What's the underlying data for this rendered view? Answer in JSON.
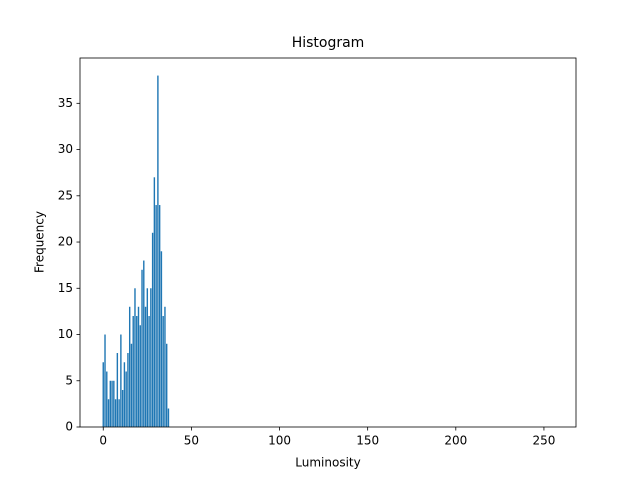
{
  "chart_data": {
    "type": "bar",
    "title": "Histogram",
    "xlabel": "Luminosity",
    "ylabel": "Frequency",
    "color": "#1f77b4",
    "x": [
      0,
      1,
      2,
      3,
      4,
      5,
      6,
      7,
      8,
      9,
      10,
      11,
      12,
      13,
      14,
      15,
      16,
      17,
      18,
      19,
      20,
      21,
      22,
      23,
      24,
      25,
      26,
      27,
      28,
      29,
      30,
      31,
      32,
      33,
      34,
      35,
      36,
      37,
      38,
      39,
      40,
      41,
      42,
      43,
      44,
      45,
      46,
      47,
      48,
      49,
      50,
      51,
      52,
      53,
      54,
      55,
      56,
      57,
      58,
      59,
      60,
      61,
      62,
      63,
      64,
      65,
      66,
      67,
      68,
      69,
      70,
      71,
      72,
      73,
      74,
      75,
      76,
      77,
      78,
      79,
      80,
      81,
      82,
      83,
      84,
      85,
      86,
      87,
      88,
      89,
      90,
      91,
      92,
      93,
      94,
      95,
      96,
      97,
      98,
      99,
      100,
      101,
      102,
      103,
      104,
      105,
      106,
      107,
      108,
      109,
      110,
      111,
      112,
      113,
      114,
      115,
      116,
      117,
      118,
      119,
      120,
      121,
      122,
      123,
      124,
      125,
      126,
      127,
      128,
      129,
      130,
      131,
      132,
      133,
      134,
      135,
      136,
      137,
      138,
      139,
      140,
      141,
      142,
      143,
      144,
      145,
      146,
      147,
      148,
      149,
      150,
      151,
      152,
      153,
      154,
      155,
      156,
      157,
      158,
      159,
      160,
      161,
      162,
      163,
      164,
      165,
      166,
      167,
      168,
      169,
      170,
      171,
      172,
      173,
      174,
      175,
      176,
      177,
      178,
      179,
      180,
      181,
      182,
      183,
      184,
      185,
      186,
      187,
      188,
      189,
      190,
      191,
      192,
      193,
      194,
      195,
      196,
      197,
      198,
      199,
      200,
      201,
      202,
      203,
      204,
      205,
      206,
      207,
      208,
      209,
      210,
      211,
      212,
      213,
      214,
      215,
      216,
      217,
      218,
      219,
      220,
      221,
      222,
      223,
      224,
      225,
      226,
      227,
      228,
      229,
      230,
      231,
      232,
      233,
      234,
      235,
      236,
      237,
      238,
      239,
      240,
      241,
      242,
      243,
      244,
      245,
      246,
      247,
      248,
      249,
      250,
      251,
      252,
      253,
      254,
      255
    ],
    "values": [
      7,
      10,
      6,
      3,
      5,
      5,
      5,
      3,
      8,
      3,
      10,
      4,
      7,
      6,
      8,
      13,
      9,
      12,
      15,
      12,
      13,
      11,
      17,
      18,
      13,
      15,
      12,
      15,
      21,
      27,
      24,
      38,
      24,
      19,
      12,
      13,
      9,
      2,
      0,
      0,
      0,
      0,
      0,
      0,
      0,
      0,
      0,
      0,
      0,
      0,
      0,
      0,
      0,
      0,
      0,
      0,
      0,
      0,
      0,
      0,
      0,
      0,
      0,
      0,
      0,
      0,
      0,
      0,
      0,
      0,
      0,
      0,
      0,
      0,
      0,
      0,
      0,
      0,
      0,
      0,
      0,
      0,
      0,
      0,
      0,
      0,
      0,
      0,
      0,
      0,
      0,
      0,
      0,
      0,
      0,
      0,
      0,
      0,
      0,
      0,
      0,
      0,
      0,
      0,
      0,
      0,
      0,
      0,
      0,
      0,
      0,
      0,
      0,
      0,
      0,
      0,
      0,
      0,
      0,
      0,
      0,
      0,
      0,
      0,
      0,
      0,
      0,
      0,
      0,
      0,
      0,
      0,
      0,
      0,
      0,
      0,
      0,
      0,
      0,
      0,
      0,
      0,
      0,
      0,
      0,
      0,
      0,
      0,
      0,
      0,
      0,
      0,
      0,
      0,
      0,
      0,
      0,
      0,
      0,
      0,
      0,
      0,
      0,
      0,
      0,
      0,
      0,
      0,
      0,
      0,
      0,
      0,
      0,
      0,
      0,
      0,
      0,
      0,
      0,
      0,
      0,
      0,
      0,
      0,
      0,
      0,
      0,
      0,
      0,
      0,
      0,
      0,
      0,
      0,
      0,
      0,
      0,
      0,
      0,
      0,
      0,
      0,
      0,
      0,
      0,
      0,
      0,
      0,
      0,
      0,
      0,
      0,
      0,
      0,
      0,
      0,
      0,
      0,
      0,
      0,
      0,
      0,
      0,
      0,
      0,
      0,
      0,
      0,
      0,
      0,
      0,
      0,
      0,
      0,
      0,
      0,
      0,
      0,
      0,
      0,
      0,
      0,
      0,
      0,
      0,
      0,
      0,
      0,
      0,
      0,
      0,
      0,
      0,
      0,
      0,
      0
    ],
    "xlim": [
      -13.19,
      268.19
    ],
    "xticks": [
      0,
      50,
      100,
      150,
      200,
      250
    ],
    "ylim": [
      0,
      39.9
    ],
    "yticks": [
      0,
      5,
      10,
      15,
      20,
      25,
      30,
      35
    ]
  }
}
